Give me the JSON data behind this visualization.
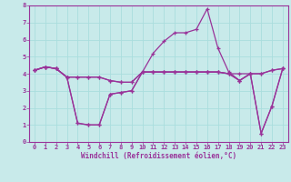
{
  "x": [
    0,
    1,
    2,
    3,
    4,
    5,
    6,
    7,
    8,
    9,
    10,
    11,
    12,
    13,
    14,
    15,
    16,
    17,
    18,
    19,
    20,
    21,
    22,
    23
  ],
  "line1": [
    4.2,
    4.4,
    4.3,
    3.8,
    1.1,
    1.0,
    1.0,
    2.8,
    2.9,
    3.0,
    4.1,
    4.1,
    4.1,
    4.1,
    4.1,
    4.1,
    4.1,
    4.1,
    4.0,
    4.0,
    4.0,
    0.5,
    2.1,
    4.3
  ],
  "line2": [
    4.2,
    4.4,
    4.3,
    3.8,
    1.1,
    1.0,
    1.0,
    2.8,
    2.9,
    3.0,
    4.1,
    5.2,
    5.9,
    6.4,
    6.4,
    6.6,
    7.8,
    5.5,
    4.1,
    3.6,
    4.0,
    0.5,
    2.1,
    4.3
  ],
  "line3": [
    4.2,
    4.4,
    4.3,
    3.8,
    3.8,
    3.8,
    3.8,
    3.6,
    3.5,
    3.5,
    4.1,
    4.1,
    4.1,
    4.1,
    4.1,
    4.1,
    4.1,
    4.1,
    4.0,
    3.6,
    4.0,
    4.0,
    4.2,
    4.3
  ],
  "line4": [
    4.2,
    4.4,
    4.3,
    3.8,
    3.8,
    3.8,
    3.8,
    3.6,
    3.5,
    3.5,
    4.1,
    4.1,
    4.1,
    4.1,
    4.1,
    4.1,
    4.1,
    4.1,
    4.0,
    3.6,
    4.0,
    4.0,
    4.2,
    4.3
  ],
  "line_color": "#993399",
  "bg_color": "#c8eaea",
  "grid_color": "#aadddd",
  "border_color": "#993399",
  "xlabel": "Windchill (Refroidissement éolien,°C)",
  "tick_color": "#993399",
  "ylim": [
    0,
    8
  ],
  "xlim": [
    -0.5,
    23.5
  ],
  "yticks": [
    0,
    1,
    2,
    3,
    4,
    5,
    6,
    7,
    8
  ],
  "xticks": [
    0,
    1,
    2,
    3,
    4,
    5,
    6,
    7,
    8,
    9,
    10,
    11,
    12,
    13,
    14,
    15,
    16,
    17,
    18,
    19,
    20,
    21,
    22,
    23
  ],
  "tick_fontsize": 5.0,
  "xlabel_fontsize": 5.5
}
